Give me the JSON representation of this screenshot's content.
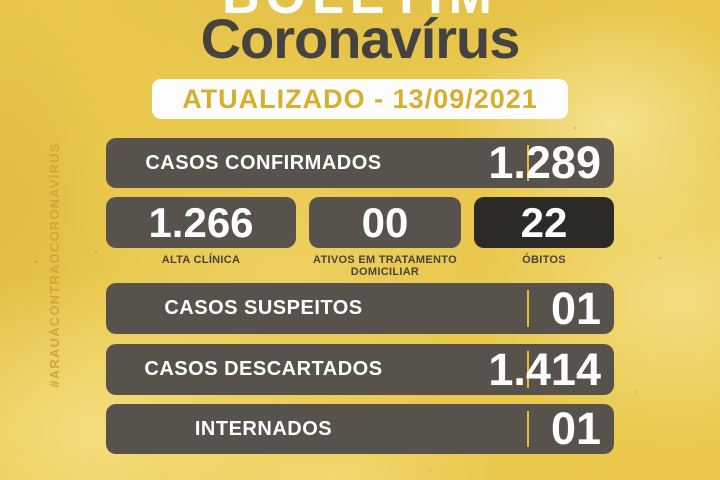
{
  "header": {
    "boletim": "BOLETIM",
    "title": "Coronavírus",
    "updated": "ATUALIZADO - 13/09/2021"
  },
  "sidebar": {
    "hashtag": "#ARAUÁCONTRAOCORONAVÍRUS"
  },
  "rows": {
    "confirmed": {
      "label": "CASOS CONFIRMADOS",
      "value": "1.289"
    },
    "suspected": {
      "label": "CASOS SUSPEITOS",
      "value": "01"
    },
    "discarded": {
      "label": "CASOS DESCARTADOS",
      "value": "1.414"
    },
    "hospitalized": {
      "label": "INTERNADOS",
      "value": "01"
    }
  },
  "stats": [
    {
      "value": "1.266",
      "label": "ALTA CLÍNICA"
    },
    {
      "value": "00",
      "label": "ATIVOS EM TRATAMENTO DOMICILIAR"
    },
    {
      "value": "22",
      "label": "ÓBITOS"
    }
  ],
  "colors": {
    "background": "#e9c84d",
    "bar": "#57534c",
    "obitos_box": "#2b2a27",
    "gold_text": "#d8ae2e",
    "divider": "#e6bb35",
    "title_text": "#454240",
    "small_label": "#4a4337",
    "white": "#fdfdfd"
  }
}
